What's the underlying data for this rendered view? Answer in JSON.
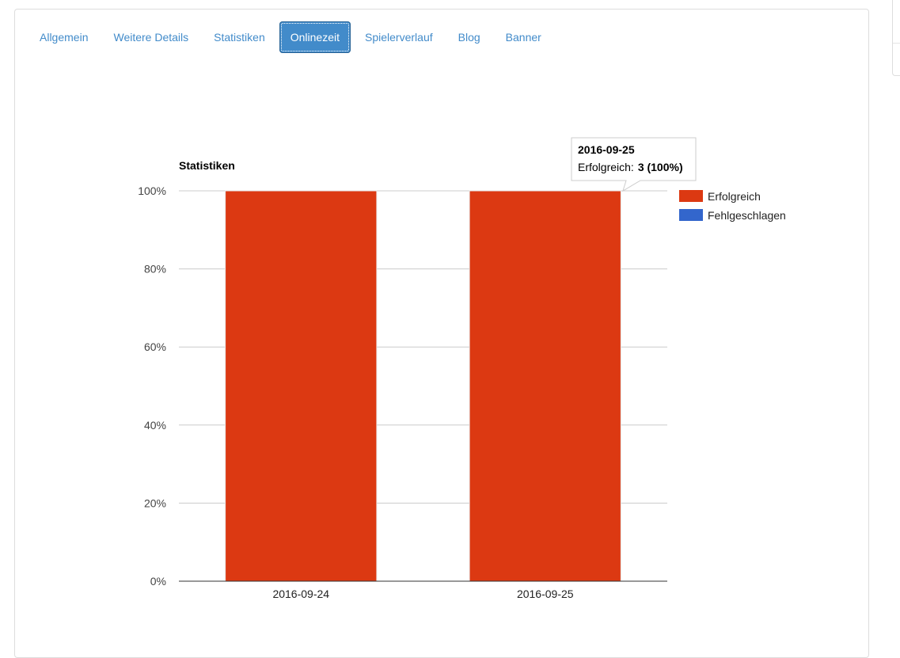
{
  "tabs": [
    {
      "label": "Allgemein",
      "active": false
    },
    {
      "label": "Weitere Details",
      "active": false
    },
    {
      "label": "Statistiken",
      "active": false
    },
    {
      "label": "Onlinezeit",
      "active": true
    },
    {
      "label": "Spielerverlauf",
      "active": false
    },
    {
      "label": "Blog",
      "active": false
    },
    {
      "label": "Banner",
      "active": false
    }
  ],
  "chart_data": {
    "type": "bar",
    "stacked": true,
    "title": "Statistiken",
    "categories": [
      "2016-09-24",
      "2016-09-25"
    ],
    "series": [
      {
        "name": "Erfolgreich",
        "color": "#dc3912",
        "values": [
          100,
          100
        ]
      },
      {
        "name": "Fehlgeschlagen",
        "color": "#3366cc",
        "values": [
          0,
          0
        ]
      }
    ],
    "yticks": [
      "0%",
      "20%",
      "40%",
      "60%",
      "80%",
      "100%"
    ],
    "ylim": [
      0,
      100
    ],
    "grid": true,
    "legend_position": "right",
    "tooltip": {
      "title": "2016-09-25",
      "label": "Erfolgreich:",
      "value": "3 (100%)"
    }
  }
}
